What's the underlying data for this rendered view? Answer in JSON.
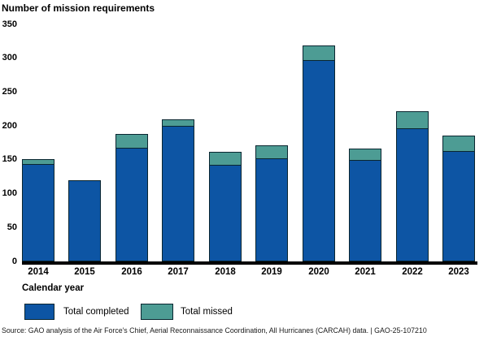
{
  "title": "Number of mission requirements",
  "xaxis_title": "Calendar year",
  "source_line": "Source: GAO analysis of the Air Force's Chief, Aerial Reconnaissance Coordination, All Hurricanes (CARCAH) data.  |  GAO-25-107210",
  "colors": {
    "completed": "#0d55a4",
    "missed": "#4d9c94",
    "segment_border": "#0a2630",
    "axis": "#000000"
  },
  "chart_data": {
    "type": "bar",
    "stacked": true,
    "title": "Number of mission requirements",
    "xlabel": "Calendar year",
    "ylabel": "Number of mission requirements",
    "categories": [
      "2014",
      "2015",
      "2016",
      "2017",
      "2018",
      "2019",
      "2020",
      "2021",
      "2022",
      "2023"
    ],
    "series": [
      {
        "name": "Total completed",
        "color": "#0d55a4",
        "values": [
          145,
          120,
          168,
          201,
          143,
          153,
          298,
          151,
          197,
          164
        ]
      },
      {
        "name": "Total missed",
        "color": "#4d9c94",
        "values": [
          6,
          0,
          20,
          9,
          19,
          18,
          21,
          16,
          25,
          22
        ]
      }
    ],
    "stacked_totals": [
      151,
      120,
      188,
      210,
      162,
      171,
      319,
      167,
      222,
      186
    ],
    "ylim": [
      0,
      350
    ],
    "yticks": [
      0,
      50,
      100,
      150,
      200,
      250,
      300,
      350
    ],
    "grid": false,
    "legend_position": "bottom"
  }
}
